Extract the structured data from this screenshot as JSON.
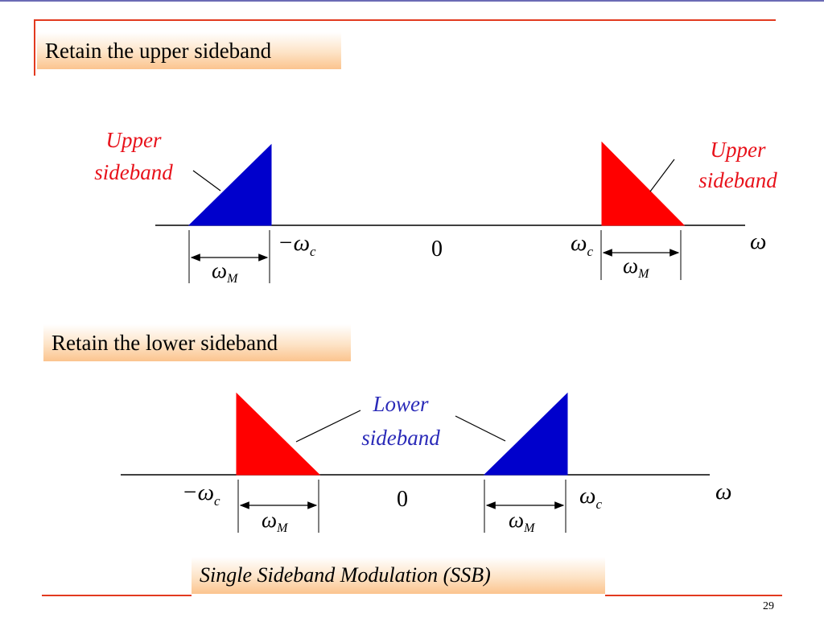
{
  "slide": {
    "title_upper": "Retain the upper sideband",
    "title_lower": "Retain the lower sideband",
    "caption": "Single Sideband Modulation (SSB)",
    "page_number": "29"
  },
  "upper_diagram": {
    "left_label_line1": "Upper",
    "left_label_line2": "sideband",
    "right_label_line1": "Upper",
    "right_label_line2": "sideband",
    "neg_wc": "−ω",
    "neg_wc_sub": "c",
    "zero": "0",
    "wc": "ω",
    "wc_sub": "c",
    "omega": "ω",
    "wm_left": "ω",
    "wm_left_sub": "M",
    "wm_right": "ω",
    "wm_right_sub": "M"
  },
  "lower_diagram": {
    "label_line1": "Lower",
    "label_line2": "sideband",
    "neg_wc": "−ω",
    "neg_wc_sub": "c",
    "zero": "0",
    "wc": "ω",
    "wc_sub": "c",
    "omega": "ω",
    "wm_left": "ω",
    "wm_left_sub": "M",
    "wm_right": "ω",
    "wm_right_sub": "M"
  },
  "colors": {
    "red": "#ff0000",
    "blue": "#0000cc",
    "accent_line": "#e23a1f",
    "label_red": "#e8121b",
    "label_blue": "#2a2ab8"
  }
}
